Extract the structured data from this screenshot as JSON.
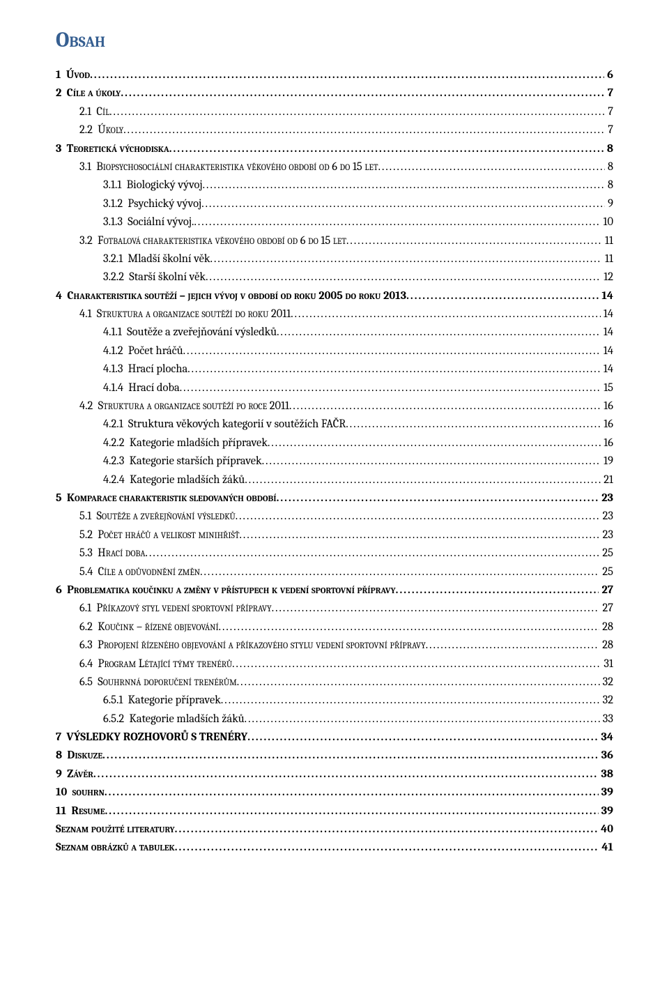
{
  "title": "Obsah",
  "toc": [
    {
      "num": "1",
      "text": "Úvod",
      "page": "6",
      "level": 0
    },
    {
      "num": "2",
      "text": "Cíle a úkoly",
      "page": "7",
      "level": 0
    },
    {
      "num": "2.1",
      "text": "Cíl",
      "page": "7",
      "level": 1
    },
    {
      "num": "2.2",
      "text": "Úkoly",
      "page": "7",
      "level": 1
    },
    {
      "num": "3",
      "text": "Teoretická východiska",
      "page": "8",
      "level": 0
    },
    {
      "num": "3.1",
      "text": "Biopsychosociální charakteristika věkového období od 6 do 15 let",
      "page": "8",
      "level": 1
    },
    {
      "num": "3.1.1",
      "text": "Biologický vývoj",
      "page": "8",
      "level": 2
    },
    {
      "num": "3.1.2",
      "text": "Psychický vývoj",
      "page": "9",
      "level": 2
    },
    {
      "num": "3.1.3",
      "text": "Sociální vývoj.",
      "page": "10",
      "level": 2
    },
    {
      "num": "3.2",
      "text": "Fotbalová charakteristika věkového období od 6 do 15 let",
      "page": "11",
      "level": 1
    },
    {
      "num": "3.2.1",
      "text": "Mladší školní věk",
      "page": "11",
      "level": 2
    },
    {
      "num": "3.2.2",
      "text": "Starší školní věk",
      "page": "12",
      "level": 2
    },
    {
      "num": "4",
      "text": "Charakteristika soutěží – jejich vývoj v období od roku 2005 do roku 2013",
      "page": "14",
      "level": 0
    },
    {
      "num": "4.1",
      "text": "Struktura a organizace soutěží do roku 2011",
      "page": "14",
      "level": 1
    },
    {
      "num": "4.1.1",
      "text": "Soutěže a zveřejňování výsledků",
      "page": "14",
      "level": 2
    },
    {
      "num": "4.1.2",
      "text": "Počet hráčů",
      "page": "14",
      "level": 2
    },
    {
      "num": "4.1.3",
      "text": "Hrací plocha",
      "page": "14",
      "level": 2
    },
    {
      "num": "4.1.4",
      "text": "Hrací doba",
      "page": "15",
      "level": 2
    },
    {
      "num": "4.2",
      "text": "Struktura a organizace soutěží po roce 2011",
      "page": "16",
      "level": 1
    },
    {
      "num": "4.2.1",
      "text": "Struktura věkových kategorií v soutěžích FAČR",
      "page": "16",
      "level": 2
    },
    {
      "num": "4.2.2",
      "text": "Kategorie mladších přípravek",
      "page": "16",
      "level": 2
    },
    {
      "num": "4.2.3",
      "text": "Kategorie starších přípravek",
      "page": "19",
      "level": 2
    },
    {
      "num": "4.2.4",
      "text": "Kategorie mladších žáků",
      "page": "21",
      "level": 2
    },
    {
      "num": "5",
      "text": "Komparace charakteristik sledovaných období",
      "page": "23",
      "level": 0
    },
    {
      "num": "5.1",
      "text": "Soutěže a zveřejňování výsledků",
      "page": "23",
      "level": 1
    },
    {
      "num": "5.2",
      "text": "Počet hráčů a velikost minihřišť",
      "page": "23",
      "level": 1
    },
    {
      "num": "5.3",
      "text": "Hrací doba",
      "page": "25",
      "level": 1
    },
    {
      "num": "5.4",
      "text": "Cíle a odůvodnění změn",
      "page": "25",
      "level": 1
    },
    {
      "num": "6",
      "text": "Problematika koučinku a změny v přístupech k vedení sportovní přípravy",
      "page": "27",
      "level": 0
    },
    {
      "num": "6.1",
      "text": "Příkazový styl vedení sportovní přípravy",
      "page": "27",
      "level": 1
    },
    {
      "num": "6.2",
      "text": "Koučink – řízené objevování",
      "page": "28",
      "level": 1
    },
    {
      "num": "6.3",
      "text": "Propojení řízeného objevování a příkazového stylu vedení sportovní přípravy",
      "page": "28",
      "level": 1
    },
    {
      "num": "6.4",
      "text": "Program Létající týmy trenérů",
      "page": "31",
      "level": 1
    },
    {
      "num": "6.5",
      "text": "Souhrnná doporučení trenérům",
      "page": "32",
      "level": 1
    },
    {
      "num": "6.5.1",
      "text": "Kategorie přípravek",
      "page": "32",
      "level": 2
    },
    {
      "num": "6.5.2",
      "text": "Kategorie mladších žáků",
      "page": "33",
      "level": 2
    },
    {
      "num": "7",
      "text": "VÝSLEDKY ROZHOVORŮ S TRENÉRY",
      "page": "34",
      "level": 0
    },
    {
      "num": "8",
      "text": "Diskuze",
      "page": "36",
      "level": 0
    },
    {
      "num": "9",
      "text": "Závěr",
      "page": "38",
      "level": 0
    },
    {
      "num": "10",
      "text": "souhrn",
      "page": "39",
      "level": 0
    },
    {
      "num": "11",
      "text": "Resume",
      "page": "39",
      "level": 0
    },
    {
      "num": "",
      "text": "Seznam použité literatury",
      "page": "40",
      "level": "free0"
    },
    {
      "num": "",
      "text": "Seznam obrázků a tabulek",
      "page": "41",
      "level": "free0"
    }
  ]
}
